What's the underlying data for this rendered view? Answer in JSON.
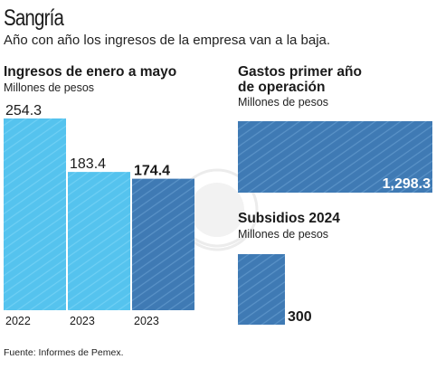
{
  "header": {
    "title": "Sangría",
    "subtitle": "Año con año los ingresos de la empresa van a la baja."
  },
  "chart_data": [
    {
      "type": "bar",
      "title": "Ingresos de enero a mayo",
      "ylabel": "Millones de pesos",
      "categories": [
        "2022",
        "2023",
        "2023"
      ],
      "values": [
        254.3,
        183.4,
        174.4
      ],
      "value_labels": [
        "254.3",
        "183.4",
        "174.4"
      ],
      "colors": [
        "#55c3ee",
        "#55c3ee",
        "#3f7ab4"
      ],
      "ylim": [
        0,
        254.3
      ]
    },
    {
      "type": "bar",
      "orientation": "horizontal",
      "title": "Gastos primer año de operación",
      "xlabel": "Millones de pesos",
      "categories": [
        ""
      ],
      "values": [
        1298.3
      ],
      "value_labels": [
        "1,298.3"
      ],
      "colors": [
        "#3f7ab4"
      ]
    },
    {
      "type": "bar",
      "title": "Subsidios 2024",
      "ylabel": "Millones de pesos",
      "categories": [
        ""
      ],
      "values": [
        300
      ],
      "value_labels": [
        "300"
      ],
      "colors": [
        "#3f7ab4"
      ]
    }
  ],
  "footer": {
    "source": "Fuente: Informes de Pemex."
  }
}
